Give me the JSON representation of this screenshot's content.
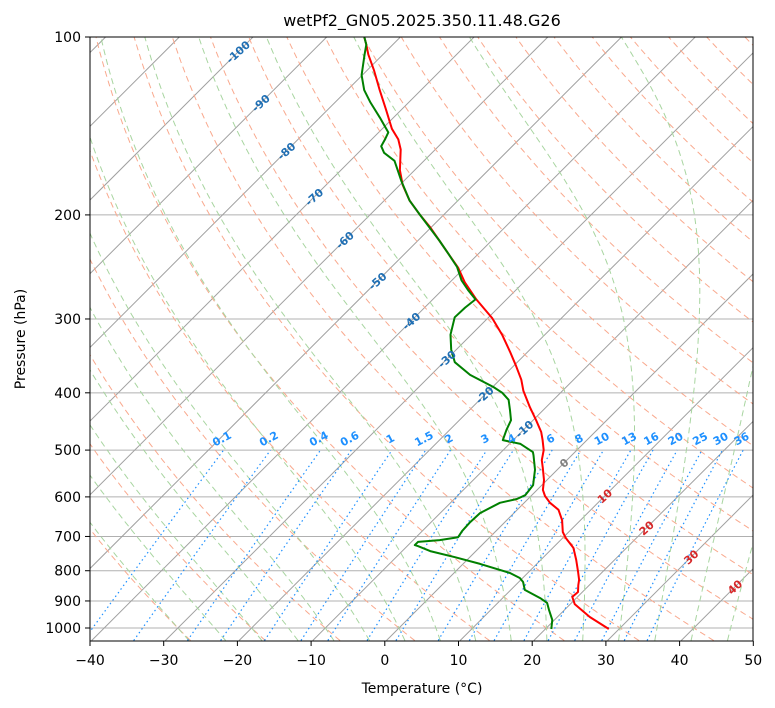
{
  "chart_data": {
    "type": "line",
    "subtype": "skew-T log-p",
    "title": "wetPf2_GN05.2025.350.11.48.G26",
    "xlabel": "Temperature (°C)",
    "ylabel": "Pressure (hPa)",
    "xlim": [
      -40,
      50
    ],
    "ylim": [
      1050,
      100
    ],
    "x_ticks": [
      "−40",
      "−30",
      "−20",
      "−10",
      "0",
      "10",
      "20",
      "30",
      "40",
      "50"
    ],
    "x_tick_values": [
      -40,
      -30,
      -20,
      -10,
      0,
      10,
      20,
      30,
      40,
      50
    ],
    "y_ticks": [
      "100",
      "200",
      "300",
      "400",
      "500",
      "600",
      "700",
      "800",
      "900",
      "1000"
    ],
    "y_tick_values": [
      100,
      200,
      300,
      400,
      500,
      600,
      700,
      800,
      900,
      1000
    ],
    "grid": true,
    "colors": {
      "temperature": "#ff0000",
      "dewpoint": "#008000",
      "isotherm": "#a0a0a0",
      "dry_adiabat": "#f9a98e",
      "moist_adiabat": "#a8d5a0",
      "mixing_ratio": "#1e90ff",
      "label_neg": "#1f6fb4",
      "label_zero": "#808080",
      "label_pos": "#d62728"
    },
    "series": [
      {
        "name": "Temperature",
        "pressure": [
          1004,
          958,
          911,
          886,
          869,
          846,
          829,
          804,
          767,
          732,
          704,
          688,
          657,
          631,
          614,
          598,
          584,
          562,
          536,
          520,
          500,
          481,
          466,
          445,
          423,
          397,
          380,
          360,
          341,
          319,
          299,
          278,
          260,
          246,
          233,
          221,
          210,
          200,
          189,
          178,
          168,
          155,
          149,
          143,
          133,
          123,
          114,
          107,
          103,
          100
        ],
        "values": [
          28.6,
          24.4,
          20.6,
          19.3,
          19.4,
          18.5,
          17.9,
          16.7,
          14.8,
          12.8,
          10.4,
          9.2,
          7.5,
          5.6,
          3.5,
          1.9,
          0.8,
          -0.4,
          -2.2,
          -3.4,
          -4.5,
          -6.0,
          -7.3,
          -9.6,
          -12.2,
          -15.3,
          -17.1,
          -19.7,
          -22.4,
          -25.8,
          -29.4,
          -34.1,
          -38.0,
          -40.8,
          -44.0,
          -47.1,
          -50.1,
          -53.2,
          -56.6,
          -59.6,
          -62.0,
          -64.7,
          -66.4,
          -68.7,
          -72.0,
          -75.6,
          -79.0,
          -82.0,
          -83.6,
          -84.9
        ]
      },
      {
        "name": "Dewpoint",
        "pressure": [
          1004,
          969,
          932,
          907,
          890,
          862,
          836,
          823,
          807,
          779,
          759,
          741,
          727,
          724,
          715,
          710,
          702,
          685,
          662,
          639,
          614,
          605,
          596,
          573,
          540,
          510,
          504,
          488,
          484,
          481,
          462,
          445,
          428,
          411,
          400,
          391,
          373,
          355,
          338,
          319,
          298,
          287,
          278,
          268,
          258,
          245,
          233,
          221,
          200,
          189,
          175,
          168,
          162,
          157,
          153,
          149,
          145,
          137,
          129,
          123,
          116,
          107,
          103,
          100
        ],
        "values": [
          20.8,
          19.7,
          17.9,
          16.7,
          15.1,
          11.9,
          10.6,
          9.6,
          7.6,
          2.3,
          -2.0,
          -6.2,
          -8.5,
          -9.1,
          -9.1,
          -6.4,
          -4.3,
          -4.6,
          -4.7,
          -4.6,
          -3.3,
          -1.5,
          -0.9,
          -1.2,
          -3.0,
          -5.2,
          -5.7,
          -8.5,
          -10.2,
          -11.4,
          -12.3,
          -13.0,
          -14.5,
          -16.1,
          -17.9,
          -19.9,
          -24.7,
          -28.5,
          -30.7,
          -32.8,
          -34.6,
          -34.5,
          -34.2,
          -36.5,
          -38.7,
          -41.1,
          -44.0,
          -47.1,
          -53.2,
          -56.6,
          -60.4,
          -62.3,
          -64.0,
          -66.5,
          -67.8,
          -68.2,
          -68.7,
          -71.8,
          -75.2,
          -77.7,
          -80.1,
          -82.5,
          -83.6,
          -84.9
        ]
      }
    ],
    "mixing_ratio_labels": [
      "0.1",
      "0.2",
      "0.4",
      "0.6",
      "1",
      "1.5",
      "2",
      "3",
      "4",
      "6",
      "8",
      "10",
      "13",
      "16",
      "20",
      "25",
      "30",
      "36"
    ],
    "mixing_ratio_values": [
      0.1,
      0.2,
      0.4,
      0.6,
      1,
      1.5,
      2,
      3,
      4,
      6,
      8,
      10,
      13,
      16,
      20,
      25,
      30,
      36
    ],
    "isotherm_labels": [
      "-100",
      "-90",
      "-80",
      "-70",
      "-60",
      "-50",
      "-40",
      "-30",
      "-20",
      "-10",
      "0",
      "10",
      "20",
      "30",
      "40"
    ],
    "isotherm_label_values": [
      -100,
      -90,
      -80,
      -70,
      -60,
      -50,
      -40,
      -30,
      -20,
      -10,
      0,
      10,
      20,
      30,
      40
    ]
  }
}
